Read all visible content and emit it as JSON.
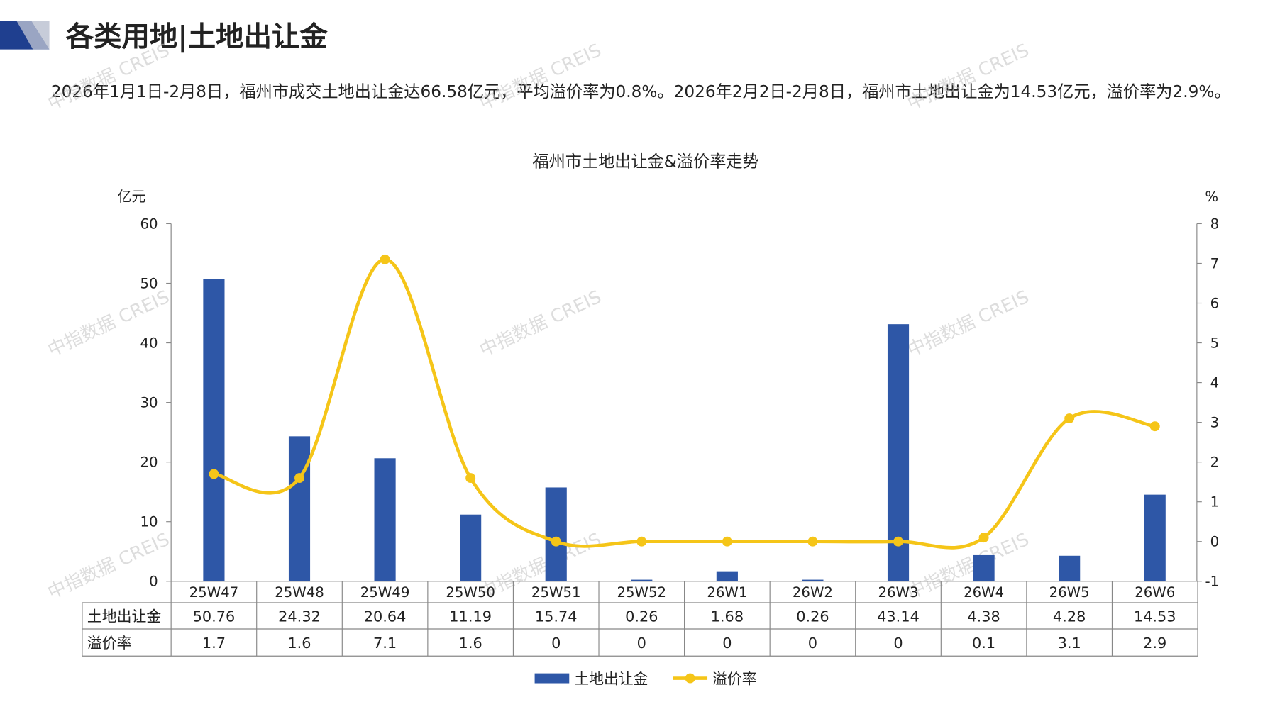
{
  "header": {
    "title": "各类用地|土地出让金",
    "summary": "2026年1月1日-2月8日，福州市成交土地出让金达66.58亿元，平均溢价率为0.8%。2026年2月2日-2月8日，福州市土地出让金为14.53亿元，溢价率为2.9%。"
  },
  "watermark": "中指数据 CREIS",
  "chart_data": {
    "type": "combo",
    "title": "福州市土地出让金&溢价率走势",
    "y_label": "亿元",
    "y2_label": "%",
    "categories": [
      "25W47",
      "25W48",
      "25W49",
      "25W50",
      "25W51",
      "25W52",
      "26W1",
      "26W2",
      "26W3",
      "26W4",
      "26W5",
      "26W6"
    ],
    "series": [
      {
        "name": "土地出让金",
        "type": "bar",
        "color": "#2e57a7",
        "values": [
          50.76,
          24.32,
          20.64,
          11.19,
          15.74,
          0.26,
          1.68,
          0.26,
          43.14,
          4.38,
          4.28,
          14.53
        ]
      },
      {
        "name": "溢价率",
        "type": "line",
        "color": "#f5c518",
        "axis": "y2",
        "values": [
          1.7,
          1.6,
          7.1,
          1.6,
          0,
          0,
          0,
          0,
          0,
          0.1,
          3.1,
          2.9
        ]
      }
    ],
    "ylim": [
      0,
      60
    ],
    "yticks": [
      0,
      10,
      20,
      30,
      40,
      50,
      60
    ],
    "y2lim": [
      -1,
      8
    ],
    "y2ticks": [
      -1,
      0,
      1,
      2,
      3,
      4,
      5,
      6,
      7,
      8
    ],
    "grid": false,
    "legend": "bottom",
    "data_table": true
  }
}
